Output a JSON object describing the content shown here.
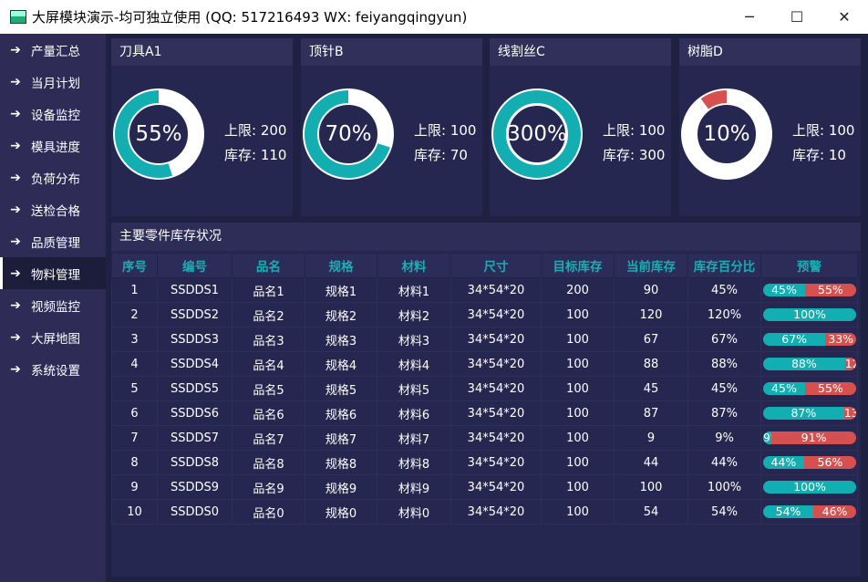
{
  "window": {
    "title": "大屏模块演示-均可独立使用 (QQ: 517216493  WX: feiyangqingyun)",
    "minimize": "─",
    "maximize": "☐",
    "close": "✕"
  },
  "sidebar": {
    "items": [
      {
        "label": "产量汇总"
      },
      {
        "label": "当月计划"
      },
      {
        "label": "设备监控"
      },
      {
        "label": "模具进度"
      },
      {
        "label": "负荷分布"
      },
      {
        "label": "送检合格"
      },
      {
        "label": "品质管理"
      },
      {
        "label": "物料管理",
        "active": true
      },
      {
        "label": "视频监控"
      },
      {
        "label": "大屏地图"
      },
      {
        "label": "系统设置"
      }
    ]
  },
  "colors": {
    "teal": "#12aeb1",
    "red": "#d75050",
    "ring_bg": "#ffffff"
  },
  "cards": [
    {
      "title": "刀具A1",
      "percent": "55%",
      "value": 55,
      "limit_label": "上限: 200",
      "stock_label": "库存: 110",
      "color": "#12aeb1"
    },
    {
      "title": "顶针B",
      "percent": "70%",
      "value": 70,
      "limit_label": "上限: 100",
      "stock_label": "库存: 70",
      "color": "#12aeb1"
    },
    {
      "title": "线割丝C",
      "percent": "300%",
      "value": 300,
      "limit_label": "上限: 100",
      "stock_label": "库存: 300",
      "color": "#12aeb1"
    },
    {
      "title": "树脂D",
      "percent": "10%",
      "value": 10,
      "limit_label": "上限: 100",
      "stock_label": "库存: 10",
      "color": "#d75050"
    }
  ],
  "table": {
    "title": "主要零件库存状况",
    "headers": [
      "序号",
      "编号",
      "品名",
      "规格",
      "材料",
      "尺寸",
      "目标库存",
      "当前库存",
      "库存百分比",
      "预警"
    ],
    "rows": [
      [
        "1",
        "SSDDS1",
        "品名1",
        "规格1",
        "材料1",
        "34*54*20",
        "200",
        "90",
        "45%",
        45
      ],
      [
        "2",
        "SSDDS2",
        "品名2",
        "规格2",
        "材料2",
        "34*54*20",
        "100",
        "120",
        "120%",
        100
      ],
      [
        "3",
        "SSDDS3",
        "品名3",
        "规格3",
        "材料3",
        "34*54*20",
        "100",
        "67",
        "67%",
        67
      ],
      [
        "4",
        "SSDDS4",
        "品名4",
        "规格4",
        "材料4",
        "34*54*20",
        "100",
        "88",
        "88%",
        88
      ],
      [
        "5",
        "SSDDS5",
        "品名5",
        "规格5",
        "材料5",
        "34*54*20",
        "100",
        "45",
        "45%",
        45
      ],
      [
        "6",
        "SSDDS6",
        "品名6",
        "规格6",
        "材料6",
        "34*54*20",
        "100",
        "87",
        "87%",
        87
      ],
      [
        "7",
        "SSDDS7",
        "品名7",
        "规格7",
        "材料7",
        "34*54*20",
        "100",
        "9",
        "9%",
        9
      ],
      [
        "8",
        "SSDDS8",
        "品名8",
        "规格8",
        "材料8",
        "34*54*20",
        "100",
        "44",
        "44%",
        44
      ],
      [
        "9",
        "SSDDS9",
        "品名9",
        "规格9",
        "材料9",
        "34*54*20",
        "100",
        "100",
        "100%",
        100
      ],
      [
        "10",
        "SSDDS0",
        "品名0",
        "规格0",
        "材料0",
        "34*54*20",
        "100",
        "54",
        "54%",
        54
      ]
    ]
  }
}
